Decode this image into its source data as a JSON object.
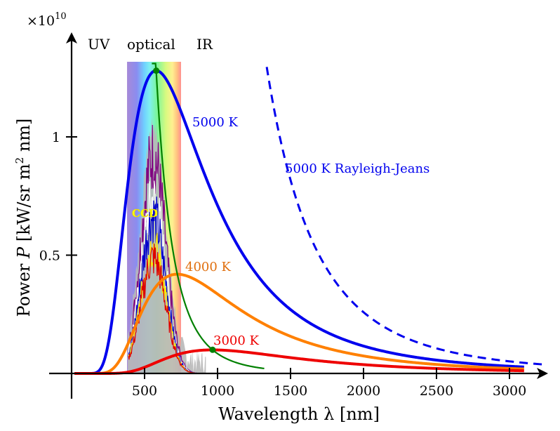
{
  "chart_data": {
    "type": "line",
    "model": "Planck black-body spectral radiance",
    "multiplier": "×10",
    "multiplier_exp": "10",
    "xlabel": "Wavelength λ [nm]",
    "ylabel_parts": {
      "a": "Power ",
      "b": "P",
      "c": " [kW/sr m",
      "d": "2",
      "e": " nm]"
    },
    "xlim": [
      0,
      3250
    ],
    "ylim": [
      0,
      1.32
    ],
    "x_ticks": [
      500,
      1000,
      1500,
      2000,
      2500,
      3000
    ],
    "x_tick_labels": [
      "500",
      "1000",
      "1500",
      "2000",
      "2500",
      "3000"
    ],
    "y_ticks": [
      0.5,
      1
    ],
    "y_tick_labels": [
      "0.5",
      "1"
    ],
    "band_labels": {
      "uv": "UV",
      "optical": "optical",
      "ir": "IR"
    },
    "visible_band_nm": [
      380,
      750
    ],
    "series": [
      {
        "name": "5000 K",
        "label": "5000 K",
        "temperature_K": 5000,
        "color": "#0000ee",
        "style": "solid",
        "peak_nm": 580,
        "peak_value": 1.28
      },
      {
        "name": "4000 K",
        "label": "4000 K",
        "temperature_K": 4000,
        "color": "#ff8000",
        "style": "solid",
        "peak_nm": 725,
        "peak_value": 0.42
      },
      {
        "name": "3000 K",
        "label": "3000 K",
        "temperature_K": 3000,
        "color": "#ee0000",
        "style": "solid",
        "peak_nm": 966,
        "peak_value": 0.1
      },
      {
        "name": "5000 K Rayleigh-Jeans",
        "label": "5000 K Rayleigh-Jeans",
        "temperature_K": 5000,
        "color": "#0000ee",
        "style": "dashed"
      }
    ],
    "wien_locus": {
      "color": "#008000",
      "range_nm": [
        550,
        1320
      ]
    },
    "ccd_label": "CCD",
    "grid": false,
    "legend": "none (inline labels)"
  }
}
